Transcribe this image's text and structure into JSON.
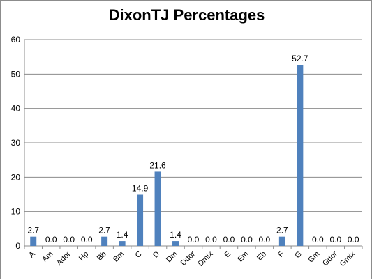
{
  "chart_data": {
    "type": "bar",
    "title": "DixonTJ Percentages",
    "xlabel": "",
    "ylabel": "",
    "ylim": [
      0,
      60
    ],
    "yticks": [
      0,
      10,
      20,
      30,
      40,
      50,
      60
    ],
    "grid": true,
    "legend": "none",
    "bar_color": "#4f81bd",
    "categories": [
      "A",
      "Am",
      "Ador",
      "Hp",
      "Bb",
      "Bm",
      "C",
      "D",
      "Dm",
      "Ddor",
      "Dmix",
      "E",
      "Em",
      "Eb",
      "F",
      "G",
      "Gm",
      "Gdor",
      "Gmix"
    ],
    "values": [
      2.7,
      0.0,
      0.0,
      0.0,
      2.7,
      1.4,
      14.9,
      21.6,
      1.4,
      0.0,
      0.0,
      0.0,
      0.0,
      0.0,
      2.7,
      52.7,
      0.0,
      0.0,
      0.0
    ],
    "data_labels": [
      "2.7",
      "0.0",
      "0.0",
      "0.0",
      "2.7",
      "1.4",
      "14.9",
      "21.6",
      "1.4",
      "0.0",
      "0.0",
      "0.0",
      "0.0",
      "0.0",
      "2.7",
      "52.7",
      "0.0",
      "0.0",
      "0.0"
    ]
  }
}
